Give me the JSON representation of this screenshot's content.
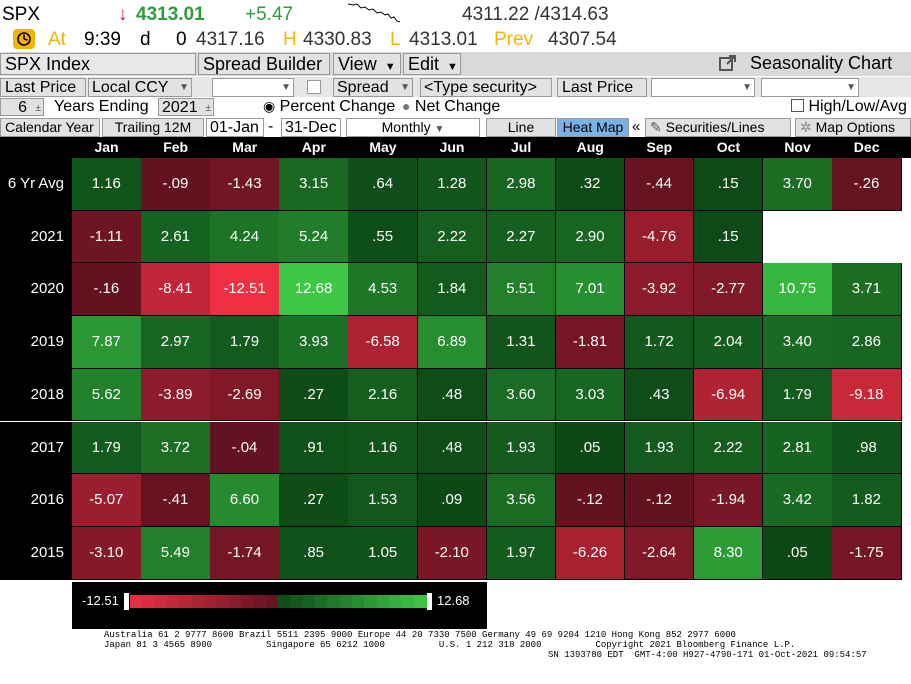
{
  "quote": {
    "ticker": "SPX",
    "arrow": "↓",
    "last": "4313.01",
    "change": "+5.47",
    "bid_ask": "4311.22 /4314.63",
    "at_label": "At",
    "time": "9:39",
    "time_suffix": "d",
    "vol": "0",
    "open": "4317.16",
    "high_label": "H",
    "high": "4330.83",
    "low_label": "L",
    "low": "4313.01",
    "prev_label": "Prev",
    "prev": "4307.54"
  },
  "toolbar": {
    "security": "SPX Index",
    "spread_builder": "Spread Builder",
    "view": "View",
    "edit": "Edit",
    "title": "Seasonality Chart"
  },
  "row2": {
    "field": "Last Price",
    "currency": "Local CCY",
    "spread": "Spread",
    "type_security": "<Type security>",
    "field2": "Last Price"
  },
  "row3": {
    "years": "6",
    "years_label": "Years Ending",
    "year_end": "2021",
    "percent_change": "Percent Change",
    "net_change": "Net Change",
    "high_low_avg": "High/Low/Avg"
  },
  "row4": {
    "calendar_year": "Calendar Year",
    "trailing": "Trailing 12M",
    "start": "01-Jan",
    "dash": "-",
    "end": "31-Dec",
    "period": "Monthly",
    "line": "Line",
    "heat_map": "Heat Map",
    "chevron": "«",
    "securities_lines": "Securities/Lines",
    "map_options": "Map Options"
  },
  "colors": {
    "accent_green": "#2e9b3e",
    "accent_red": "#c8102e",
    "change_green": "#2e9b3e",
    "last_green": "#2e9b3e",
    "arrow_red": "#c8102e"
  },
  "heatmap": {
    "months": [
      "Jan",
      "Feb",
      "Mar",
      "Apr",
      "May",
      "Jun",
      "Jul",
      "Aug",
      "Sep",
      "Oct",
      "Nov",
      "Dec"
    ],
    "min_label": "-12.51",
    "max_label": "12.68",
    "min": -12.51,
    "max": 12.68,
    "rows": [
      {
        "label": "6 Yr Avg",
        "values": [
          1.16,
          -0.09,
          -1.43,
          3.15,
          0.64,
          1.28,
          2.98,
          0.32,
          -0.44,
          0.15,
          3.7,
          -0.26
        ],
        "texts": [
          "1.16",
          "-.09",
          "-1.43",
          "3.15",
          ".64",
          "1.28",
          "2.98",
          ".32",
          "-.44",
          ".15",
          "3.70",
          "-.26"
        ]
      },
      {
        "label": "2021",
        "values": [
          -1.11,
          2.61,
          4.24,
          5.24,
          0.55,
          2.22,
          2.27,
          2.9,
          -4.76,
          0.15,
          null,
          null
        ],
        "texts": [
          "-1.11",
          "2.61",
          "4.24",
          "5.24",
          ".55",
          "2.22",
          "2.27",
          "2.90",
          "-4.76",
          ".15",
          "",
          ""
        ]
      },
      {
        "label": "2020",
        "values": [
          -0.16,
          -8.41,
          -12.51,
          12.68,
          4.53,
          1.84,
          5.51,
          7.01,
          -3.92,
          -2.77,
          10.75,
          3.71
        ],
        "texts": [
          "-.16",
          "-8.41",
          "-12.51",
          "12.68",
          "4.53",
          "1.84",
          "5.51",
          "7.01",
          "-3.92",
          "-2.77",
          "10.75",
          "3.71"
        ]
      },
      {
        "label": "2019",
        "values": [
          7.87,
          2.97,
          1.79,
          3.93,
          -6.58,
          6.89,
          1.31,
          -1.81,
          1.72,
          2.04,
          3.4,
          2.86
        ],
        "texts": [
          "7.87",
          "2.97",
          "1.79",
          "3.93",
          "-6.58",
          "6.89",
          "1.31",
          "-1.81",
          "1.72",
          "2.04",
          "3.40",
          "2.86"
        ]
      },
      {
        "label": "2018",
        "values": [
          5.62,
          -3.89,
          -2.69,
          0.27,
          2.16,
          0.48,
          3.6,
          3.03,
          0.43,
          -6.94,
          1.79,
          -9.18
        ],
        "texts": [
          "5.62",
          "-3.89",
          "-2.69",
          ".27",
          "2.16",
          ".48",
          "3.60",
          "3.03",
          ".43",
          "-6.94",
          "1.79",
          "-9.18"
        ]
      },
      {
        "label": "2017",
        "values": [
          1.79,
          3.72,
          -0.04,
          0.91,
          1.16,
          0.48,
          1.93,
          0.05,
          1.93,
          2.22,
          2.81,
          0.98
        ],
        "texts": [
          "1.79",
          "3.72",
          "-.04",
          ".91",
          "1.16",
          ".48",
          "1.93",
          ".05",
          "1.93",
          "2.22",
          "2.81",
          ".98"
        ]
      },
      {
        "label": "2016",
        "values": [
          -5.07,
          -0.41,
          6.6,
          0.27,
          1.53,
          0.09,
          3.56,
          -0.12,
          -0.12,
          -1.94,
          3.42,
          1.82
        ],
        "texts": [
          "-5.07",
          "-.41",
          "6.60",
          ".27",
          "1.53",
          ".09",
          "3.56",
          "-.12",
          "-.12",
          "-1.94",
          "3.42",
          "1.82"
        ]
      },
      {
        "label": "2015",
        "values": [
          -3.1,
          5.49,
          -1.74,
          0.85,
          1.05,
          -2.1,
          1.97,
          -6.26,
          -2.64,
          8.3,
          0.05,
          -1.75
        ],
        "texts": [
          "-3.10",
          "5.49",
          "-1.74",
          ".85",
          "1.05",
          "-2.10",
          "1.97",
          "-6.26",
          "-2.64",
          "8.30",
          ".05",
          "-1.75"
        ]
      }
    ]
  },
  "footer": {
    "line1": "Australia 61 2 9777 8600 Brazil 5511 2395 9000 Europe 44 20 7330 7500 Germany 49 69 9204 1210 Hong Kong 852 2977 6000",
    "line2": "Japan 81 3 4565 8900          Singapore 65 6212 1000          U.S. 1 212 318 2000          Copyright 2021 Bloomberg Finance L.P.",
    "line3": "SN 1393780 EDT  GMT-4:00 H927-4790-171 01-Oct-2021 09:54:57"
  }
}
